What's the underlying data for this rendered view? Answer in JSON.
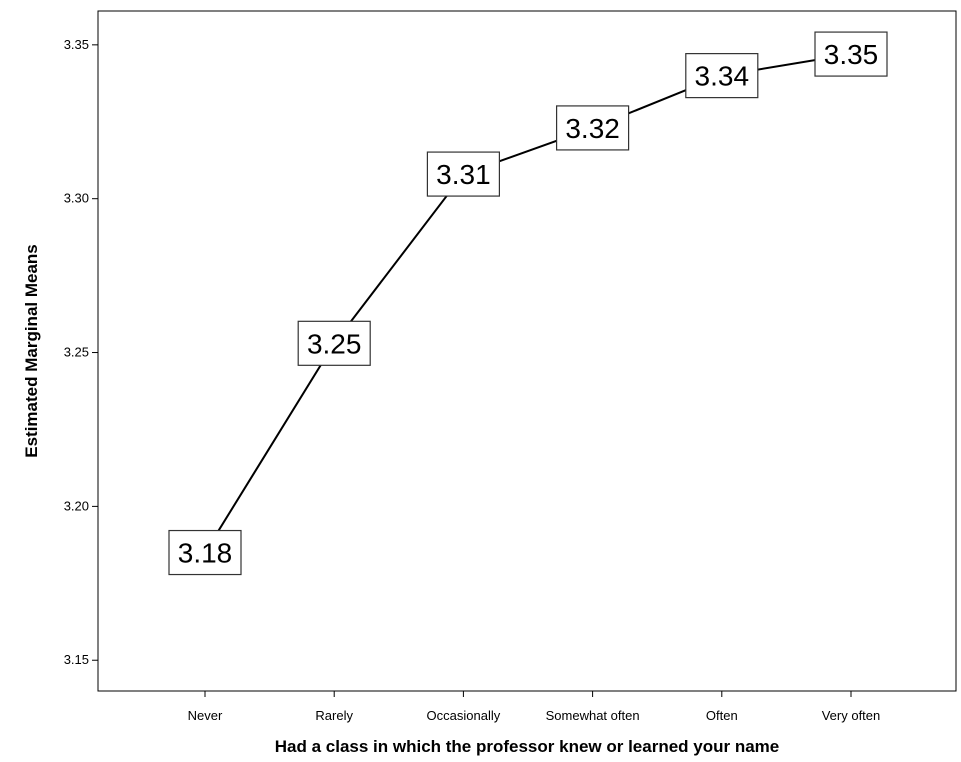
{
  "chart_data": {
    "type": "line",
    "title": "",
    "xlabel": "Had a class in which the professor knew or learned your name",
    "ylabel": "Estimated Marginal Means",
    "categories": [
      "Never",
      "Rarely",
      "Occasionally",
      "Somewhat often",
      "Often",
      "Very often"
    ],
    "series": [
      {
        "values": [
          3.185,
          3.253,
          3.308,
          3.323,
          3.34,
          3.347
        ],
        "labels": [
          "3.18",
          "3.25",
          "3.31",
          "3.32",
          "3.34",
          "3.35"
        ]
      }
    ],
    "ylim": [
      3.14,
      3.361
    ],
    "yticks": [
      3.15,
      3.2,
      3.25,
      3.3,
      3.35
    ],
    "ytick_labels": [
      "3.15",
      "3.20",
      "3.25",
      "3.30",
      "3.35"
    ],
    "grid": false,
    "legend": "none",
    "line_color": "#000000"
  }
}
